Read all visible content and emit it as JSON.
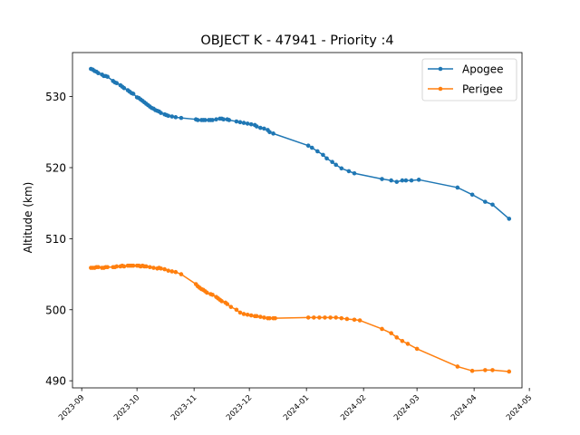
{
  "chart_data": {
    "type": "line",
    "title": "OBJECT K - 47941 - Priority :4",
    "xlabel": "",
    "ylabel": "Altitude (km)",
    "xlim": [
      "2023-08-27",
      "2024-04-27"
    ],
    "ylim": [
      489,
      536.2
    ],
    "x_ticks": [
      "2023-09",
      "2023-10",
      "2023-11",
      "2023-12",
      "2024-01",
      "2024-02",
      "2024-03",
      "2024-04",
      "2024-05"
    ],
    "y_ticks": [
      490,
      500,
      510,
      520,
      530
    ],
    "legend_position": "top-right",
    "grid": false,
    "series": [
      {
        "name": "Apogee",
        "color": "#1f77b4",
        "points": [
          [
            "2023-09-06",
            533.9
          ],
          [
            "2023-09-07",
            533.8
          ],
          [
            "2023-09-08",
            533.6
          ],
          [
            "2023-09-09",
            533.5
          ],
          [
            "2023-09-10",
            533.3
          ],
          [
            "2023-09-12",
            533.1
          ],
          [
            "2023-09-13",
            532.9
          ],
          [
            "2023-09-14",
            532.9
          ],
          [
            "2023-09-15",
            532.8
          ],
          [
            "2023-09-18",
            532.2
          ],
          [
            "2023-09-19",
            532.0
          ],
          [
            "2023-09-20",
            531.9
          ],
          [
            "2023-09-22",
            531.6
          ],
          [
            "2023-09-23",
            531.4
          ],
          [
            "2023-09-24",
            531.2
          ],
          [
            "2023-09-26",
            530.9
          ],
          [
            "2023-09-27",
            530.7
          ],
          [
            "2023-09-28",
            530.5
          ],
          [
            "2023-09-29",
            530.4
          ],
          [
            "2023-10-01",
            529.9
          ],
          [
            "2023-10-02",
            529.8
          ],
          [
            "2023-10-03",
            529.6
          ],
          [
            "2023-10-04",
            529.4
          ],
          [
            "2023-10-05",
            529.2
          ],
          [
            "2023-10-06",
            529.0
          ],
          [
            "2023-10-07",
            528.8
          ],
          [
            "2023-10-08",
            528.6
          ],
          [
            "2023-10-09",
            528.4
          ],
          [
            "2023-10-10",
            528.3
          ],
          [
            "2023-10-11",
            528.1
          ],
          [
            "2023-10-12",
            528.0
          ],
          [
            "2023-10-13",
            527.9
          ],
          [
            "2023-10-14",
            527.7
          ],
          [
            "2023-10-16",
            527.5
          ],
          [
            "2023-10-17",
            527.4
          ],
          [
            "2023-10-18",
            527.3
          ],
          [
            "2023-10-20",
            527.2
          ],
          [
            "2023-10-22",
            527.1
          ],
          [
            "2023-10-25",
            527.0
          ],
          [
            "2023-11-02",
            526.8
          ],
          [
            "2023-11-03",
            526.7
          ],
          [
            "2023-11-05",
            526.7
          ],
          [
            "2023-11-06",
            526.7
          ],
          [
            "2023-11-07",
            526.7
          ],
          [
            "2023-11-09",
            526.7
          ],
          [
            "2023-11-10",
            526.7
          ],
          [
            "2023-11-11",
            526.7
          ],
          [
            "2023-11-13",
            526.8
          ],
          [
            "2023-11-15",
            526.9
          ],
          [
            "2023-11-16",
            526.9
          ],
          [
            "2023-11-17",
            526.8
          ],
          [
            "2023-11-19",
            526.8
          ],
          [
            "2023-11-20",
            526.7
          ],
          [
            "2023-11-24",
            526.5
          ],
          [
            "2023-11-26",
            526.4
          ],
          [
            "2023-11-28",
            526.3
          ],
          [
            "2023-11-30",
            526.2
          ],
          [
            "2023-12-02",
            526.1
          ],
          [
            "2023-12-04",
            526.0
          ],
          [
            "2023-12-05",
            525.8
          ],
          [
            "2023-12-07",
            525.6
          ],
          [
            "2023-12-09",
            525.5
          ],
          [
            "2023-12-11",
            525.3
          ],
          [
            "2023-12-12",
            525.0
          ],
          [
            "2023-12-14",
            524.8
          ],
          [
            "2024-01-02",
            523.1
          ],
          [
            "2024-01-04",
            522.8
          ],
          [
            "2024-01-07",
            522.3
          ],
          [
            "2024-01-10",
            521.8
          ],
          [
            "2024-01-12",
            521.3
          ],
          [
            "2024-01-15",
            520.8
          ],
          [
            "2024-01-17",
            520.4
          ],
          [
            "2024-01-20",
            519.9
          ],
          [
            "2024-01-24",
            519.5
          ],
          [
            "2024-01-27",
            519.2
          ],
          [
            "2024-02-11",
            518.4
          ],
          [
            "2024-02-16",
            518.2
          ],
          [
            "2024-02-19",
            518.0
          ],
          [
            "2024-02-22",
            518.2
          ],
          [
            "2024-02-24",
            518.2
          ],
          [
            "2024-02-27",
            518.2
          ],
          [
            "2024-03-02",
            518.3
          ],
          [
            "2024-03-23",
            517.2
          ],
          [
            "2024-03-31",
            516.2
          ],
          [
            "2024-04-07",
            515.2
          ],
          [
            "2024-04-11",
            514.8
          ],
          [
            "2024-04-20",
            512.8
          ]
        ]
      },
      {
        "name": "Perigee",
        "color": "#ff7f0e",
        "points": [
          [
            "2023-09-06",
            505.9
          ],
          [
            "2023-09-07",
            505.9
          ],
          [
            "2023-09-08",
            505.9
          ],
          [
            "2023-09-09",
            506.0
          ],
          [
            "2023-09-10",
            506.0
          ],
          [
            "2023-09-12",
            505.9
          ],
          [
            "2023-09-13",
            505.9
          ],
          [
            "2023-09-14",
            506.0
          ],
          [
            "2023-09-15",
            506.0
          ],
          [
            "2023-09-18",
            506.0
          ],
          [
            "2023-09-19",
            506.0
          ],
          [
            "2023-09-20",
            506.1
          ],
          [
            "2023-09-22",
            506.1
          ],
          [
            "2023-09-23",
            506.2
          ],
          [
            "2023-09-24",
            506.1
          ],
          [
            "2023-09-26",
            506.2
          ],
          [
            "2023-09-27",
            506.2
          ],
          [
            "2023-09-28",
            506.2
          ],
          [
            "2023-09-29",
            506.2
          ],
          [
            "2023-10-01",
            506.2
          ],
          [
            "2023-10-02",
            506.2
          ],
          [
            "2023-10-03",
            506.1
          ],
          [
            "2023-10-04",
            506.2
          ],
          [
            "2023-10-05",
            506.1
          ],
          [
            "2023-10-06",
            506.1
          ],
          [
            "2023-10-08",
            506.0
          ],
          [
            "2023-10-10",
            505.9
          ],
          [
            "2023-10-12",
            505.8
          ],
          [
            "2023-10-13",
            505.9
          ],
          [
            "2023-10-14",
            505.8
          ],
          [
            "2023-10-16",
            505.7
          ],
          [
            "2023-10-18",
            505.5
          ],
          [
            "2023-10-20",
            505.4
          ],
          [
            "2023-10-22",
            505.3
          ],
          [
            "2023-10-25",
            505.0
          ],
          [
            "2023-11-02",
            503.6
          ],
          [
            "2023-11-03",
            503.3
          ],
          [
            "2023-11-04",
            503.1
          ],
          [
            "2023-11-05",
            502.9
          ],
          [
            "2023-11-06",
            502.8
          ],
          [
            "2023-11-07",
            502.6
          ],
          [
            "2023-11-08",
            502.4
          ],
          [
            "2023-11-10",
            502.2
          ],
          [
            "2023-11-11",
            502.1
          ],
          [
            "2023-11-13",
            501.8
          ],
          [
            "2023-11-14",
            501.6
          ],
          [
            "2023-11-15",
            501.4
          ],
          [
            "2023-11-16",
            501.2
          ],
          [
            "2023-11-18",
            501.0
          ],
          [
            "2023-11-19",
            500.8
          ],
          [
            "2023-11-21",
            500.4
          ],
          [
            "2023-11-24",
            500.0
          ],
          [
            "2023-11-26",
            499.6
          ],
          [
            "2023-11-28",
            499.4
          ],
          [
            "2023-11-30",
            499.3
          ],
          [
            "2023-12-02",
            499.2
          ],
          [
            "2023-12-04",
            499.1
          ],
          [
            "2023-12-05",
            499.1
          ],
          [
            "2023-12-07",
            499.0
          ],
          [
            "2023-12-09",
            498.9
          ],
          [
            "2023-12-11",
            498.8
          ],
          [
            "2023-12-12",
            498.8
          ],
          [
            "2023-12-14",
            498.8
          ],
          [
            "2023-12-15",
            498.8
          ],
          [
            "2024-01-02",
            498.9
          ],
          [
            "2024-01-05",
            498.9
          ],
          [
            "2024-01-08",
            498.9
          ],
          [
            "2024-01-11",
            498.9
          ],
          [
            "2024-01-14",
            498.9
          ],
          [
            "2024-01-17",
            498.9
          ],
          [
            "2024-01-20",
            498.8
          ],
          [
            "2024-01-23",
            498.7
          ],
          [
            "2024-01-27",
            498.6
          ],
          [
            "2024-01-30",
            498.5
          ],
          [
            "2024-02-11",
            497.3
          ],
          [
            "2024-02-16",
            496.7
          ],
          [
            "2024-02-19",
            496.1
          ],
          [
            "2024-02-22",
            495.6
          ],
          [
            "2024-02-25",
            495.2
          ],
          [
            "2024-03-01",
            494.5
          ],
          [
            "2024-03-23",
            492.0
          ],
          [
            "2024-03-31",
            491.4
          ],
          [
            "2024-04-07",
            491.5
          ],
          [
            "2024-04-11",
            491.5
          ],
          [
            "2024-04-20",
            491.3
          ]
        ]
      }
    ]
  }
}
